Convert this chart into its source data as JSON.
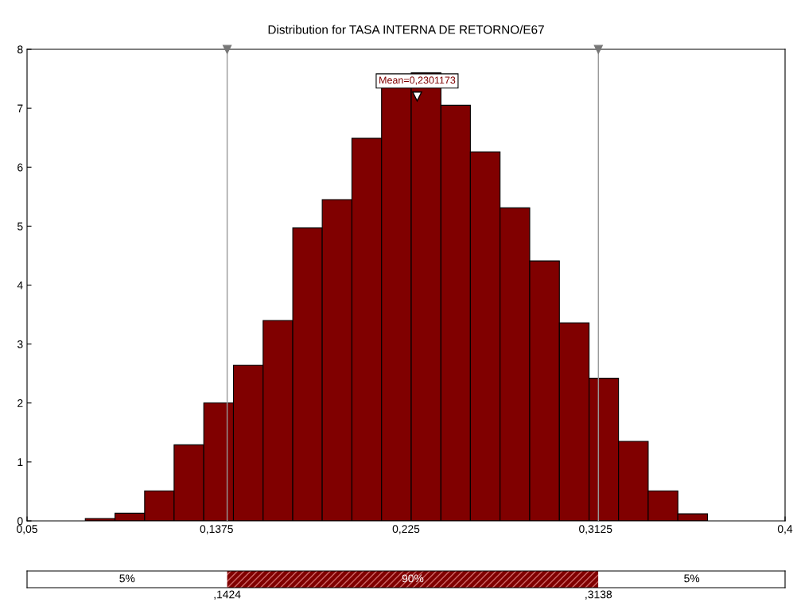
{
  "chart_data": {
    "type": "histogram",
    "title": "Distribution for TASA INTERNA DE RETORNO/E67",
    "bins": [
      0.0769,
      0.0906,
      0.1043,
      0.1179,
      0.1316,
      0.1453,
      0.159,
      0.1727,
      0.1863,
      0.2,
      0.2137,
      0.2274,
      0.2411,
      0.2547,
      0.2684,
      0.2821,
      0.2958,
      0.3095,
      0.3231,
      0.3368,
      0.3505,
      0.3642
    ],
    "values": [
      0.04,
      0.13,
      0.51,
      1.29,
      2.0,
      2.64,
      3.4,
      4.97,
      5.45,
      6.49,
      7.35,
      7.6,
      7.05,
      6.26,
      5.31,
      4.41,
      3.36,
      2.42,
      1.35,
      0.51,
      0.12
    ],
    "color": "#800000",
    "xlim": [
      0.05,
      0.4
    ],
    "xticks": [
      {
        "value": 0.05,
        "label": "0,05"
      },
      {
        "value": 0.1375,
        "label": "0,1375"
      },
      {
        "value": 0.225,
        "label": "0,225"
      },
      {
        "value": 0.3125,
        "label": "0,3125"
      },
      {
        "value": 0.4,
        "label": "0,4"
      }
    ],
    "ylim": [
      0,
      8
    ],
    "yticks": [
      0,
      1,
      2,
      3,
      4,
      5,
      6,
      7,
      8
    ],
    "grid": false,
    "ref_lines": [
      {
        "axis": "x",
        "value": 0.1424,
        "color": "#999999"
      },
      {
        "axis": "x",
        "value": 0.3138,
        "color": "#999999"
      }
    ],
    "annotations": [
      "5%",
      "90%",
      "5%",
      ",1424",
      ",3138",
      {
        "text": "Mean=0,2301173",
        "x": 0.2301173,
        "y": 7.2
      }
    ]
  }
}
